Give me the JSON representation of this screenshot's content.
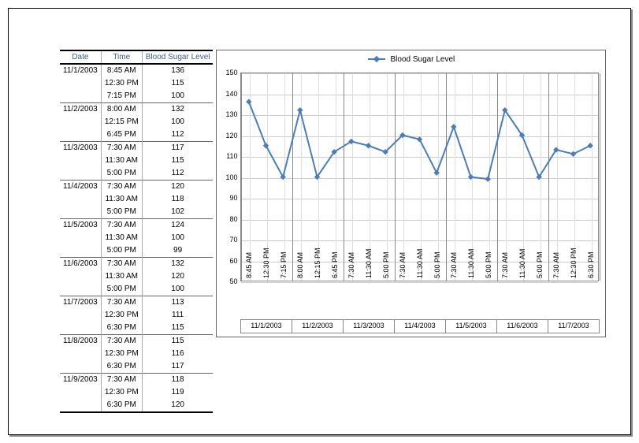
{
  "table": {
    "headers": {
      "date": "Date",
      "time": "Time",
      "level": "Blood Sugar Level"
    },
    "rows": [
      {
        "date": "11/1/2003",
        "time": "8:45 AM",
        "level": 136,
        "group_start": true
      },
      {
        "date": "",
        "time": "12:30 PM",
        "level": 115
      },
      {
        "date": "",
        "time": "7:15 PM",
        "level": 100
      },
      {
        "date": "11/2/2003",
        "time": "8:00 AM",
        "level": 132,
        "group_start": true
      },
      {
        "date": "",
        "time": "12:15 PM",
        "level": 100
      },
      {
        "date": "",
        "time": "6:45 PM",
        "level": 112
      },
      {
        "date": "11/3/2003",
        "time": "7:30 AM",
        "level": 117,
        "group_start": true
      },
      {
        "date": "",
        "time": "11:30 AM",
        "level": 115
      },
      {
        "date": "",
        "time": "5:00 PM",
        "level": 112
      },
      {
        "date": "11/4/2003",
        "time": "7:30 AM",
        "level": 120,
        "group_start": true
      },
      {
        "date": "",
        "time": "11:30 AM",
        "level": 118
      },
      {
        "date": "",
        "time": "5:00 PM",
        "level": 102
      },
      {
        "date": "11/5/2003",
        "time": "7:30 AM",
        "level": 124,
        "group_start": true
      },
      {
        "date": "",
        "time": "11:30 AM",
        "level": 100
      },
      {
        "date": "",
        "time": "5:00 PM",
        "level": 99
      },
      {
        "date": "11/6/2003",
        "time": "7:30 AM",
        "level": 132,
        "group_start": true
      },
      {
        "date": "",
        "time": "11:30 AM",
        "level": 120
      },
      {
        "date": "",
        "time": "5:00 PM",
        "level": 100
      },
      {
        "date": "11/7/2003",
        "time": "7:30 AM",
        "level": 113,
        "group_start": true
      },
      {
        "date": "",
        "time": "12:30 PM",
        "level": 111
      },
      {
        "date": "",
        "time": "6:30 PM",
        "level": 115
      },
      {
        "date": "11/8/2003",
        "time": "7:30 AM",
        "level": 115,
        "group_start": true
      },
      {
        "date": "",
        "time": "12:30 PM",
        "level": 116
      },
      {
        "date": "",
        "time": "6:30 PM",
        "level": 117
      },
      {
        "date": "11/9/2003",
        "time": "7:30 AM",
        "level": 118,
        "group_start": true
      },
      {
        "date": "",
        "time": "12:30 PM",
        "level": 119
      },
      {
        "date": "",
        "time": "6:30 PM",
        "level": 120
      }
    ]
  },
  "chart": {
    "type": "line",
    "series_name": "Blood Sugar Level",
    "series_color": "#4a7ebb",
    "marker_color": "#4a7ebb",
    "marker_style": "diamond",
    "marker_size": 6,
    "line_width": 2,
    "background_color": "#ffffff",
    "grid_color": "#cccccc",
    "border_color": "#666666",
    "font_size": 9,
    "ylim": [
      50,
      150
    ],
    "ytick_step": 10,
    "yticks": [
      50,
      60,
      70,
      80,
      90,
      100,
      110,
      120,
      130,
      140,
      150
    ],
    "points": [
      {
        "date": "11/1/2003",
        "time": "8:45 AM",
        "y": 136
      },
      {
        "date": "11/1/2003",
        "time": "12:30 PM",
        "y": 115
      },
      {
        "date": "11/1/2003",
        "time": "7:15 PM",
        "y": 100
      },
      {
        "date": "11/2/2003",
        "time": "8:00 AM",
        "y": 132
      },
      {
        "date": "11/2/2003",
        "time": "12:15 PM",
        "y": 100
      },
      {
        "date": "11/2/2003",
        "time": "6:45 PM",
        "y": 112
      },
      {
        "date": "11/3/2003",
        "time": "7:30 AM",
        "y": 117
      },
      {
        "date": "11/3/2003",
        "time": "11:30 AM",
        "y": 115
      },
      {
        "date": "11/3/2003",
        "time": "5:00 PM",
        "y": 112
      },
      {
        "date": "11/4/2003",
        "time": "7:30 AM",
        "y": 120
      },
      {
        "date": "11/4/2003",
        "time": "11:30 AM",
        "y": 118
      },
      {
        "date": "11/4/2003",
        "time": "5:00 PM",
        "y": 102
      },
      {
        "date": "11/5/2003",
        "time": "7:30 AM",
        "y": 124
      },
      {
        "date": "11/5/2003",
        "time": "11:30 AM",
        "y": 100
      },
      {
        "date": "11/5/2003",
        "time": "5:00 PM",
        "y": 99
      },
      {
        "date": "11/6/2003",
        "time": "7:30 AM",
        "y": 132
      },
      {
        "date": "11/6/2003",
        "time": "11:30 AM",
        "y": 120
      },
      {
        "date": "11/6/2003",
        "time": "5:00 PM",
        "y": 100
      },
      {
        "date": "11/7/2003",
        "time": "7:30 AM",
        "y": 113
      },
      {
        "date": "11/7/2003",
        "time": "12:30 PM",
        "y": 111
      },
      {
        "date": "11/7/2003",
        "time": "6:30 PM",
        "y": 115
      }
    ],
    "date_groups": [
      "11/1/2003",
      "11/2/2003",
      "11/3/2003",
      "11/4/2003",
      "11/5/2003",
      "11/6/2003",
      "11/7/2003"
    ]
  }
}
